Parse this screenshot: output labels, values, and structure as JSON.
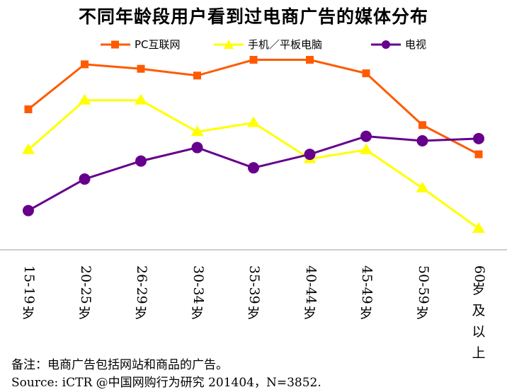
{
  "chart_data": {
    "type": "line",
    "title": "不同年龄段用户看到过电商广告的媒体分布",
    "categories": [
      "15-19岁",
      "20-25岁",
      "26-29岁",
      "30-34岁",
      "35-39岁",
      "40-44岁",
      "45-49岁",
      "50-59岁",
      "60岁及以上"
    ],
    "ylim": [
      0,
      100
    ],
    "grid": false,
    "legend": "top",
    "series": [
      {
        "name": "PC互联网",
        "color": "#FF5A00",
        "marker": "square",
        "values": [
          64,
          84,
          82,
          79,
          86,
          86,
          80,
          57,
          44
        ]
      },
      {
        "name": "手机／平板电脑",
        "color": "#FFFF00",
        "marker": "triangle",
        "values": [
          46,
          68,
          68,
          54,
          58,
          42,
          46,
          29,
          11
        ]
      },
      {
        "name": "电视",
        "color": "#66008C",
        "marker": "circle",
        "values": [
          19,
          33,
          41,
          47,
          38,
          44,
          52,
          50,
          51
        ]
      }
    ]
  },
  "notes": {
    "note": "备注：电商广告包括网站和商品的广告。",
    "source": "Source: iCTR @中国网购行为研究 201404，N=3852."
  }
}
